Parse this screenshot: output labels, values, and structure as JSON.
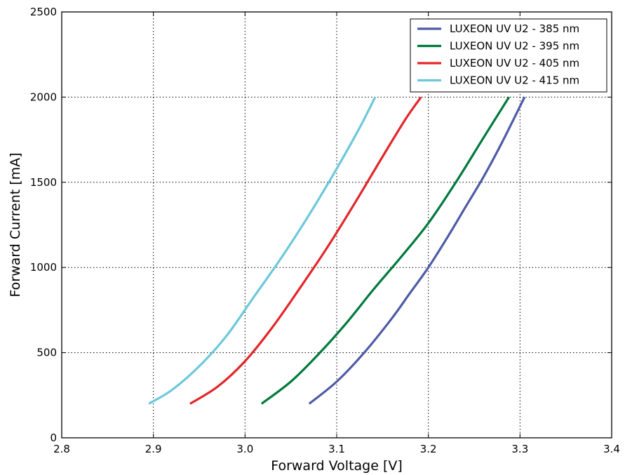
{
  "chart_data": {
    "type": "line",
    "title": "",
    "xlabel": "Forward Voltage [V]",
    "ylabel": "Forward Current [mA]",
    "xlim": [
      2.8,
      3.4
    ],
    "ylim": [
      0,
      2500
    ],
    "xticks": [
      "2.8",
      "2.9",
      "3.0",
      "3.1",
      "3.2",
      "3.3",
      "3.4"
    ],
    "yticks": [
      "0",
      "500",
      "1000",
      "1500",
      "2000",
      "2500"
    ],
    "grid": true,
    "legend_position": "top-right",
    "series": [
      {
        "name": "LUXEON UV U2 - 385 nm",
        "color": "#4e5ba6",
        "x": [
          3.07,
          3.1,
          3.13,
          3.16,
          3.18,
          3.2,
          3.22,
          3.24,
          3.26,
          3.28,
          3.305
        ],
        "y": [
          200,
          330,
          500,
          700,
          850,
          1000,
          1170,
          1350,
          1530,
          1730,
          2000
        ]
      },
      {
        "name": "LUXEON UV U2 - 395 nm",
        "color": "#007a3d",
        "x": [
          3.018,
          3.05,
          3.08,
          3.11,
          3.14,
          3.17,
          3.2,
          3.23,
          3.26,
          3.288
        ],
        "y": [
          200,
          330,
          490,
          670,
          870,
          1060,
          1260,
          1500,
          1760,
          2000
        ]
      },
      {
        "name": "LUXEON UV U2 - 405 nm",
        "color": "#e3262a",
        "x": [
          2.94,
          2.97,
          3.0,
          3.03,
          3.06,
          3.09,
          3.12,
          3.15,
          3.175,
          3.192
        ],
        "y": [
          200,
          300,
          450,
          650,
          880,
          1120,
          1380,
          1650,
          1870,
          2000
        ]
      },
      {
        "name": "LUXEON UV U2 - 415 nm",
        "color": "#6cc8da",
        "x": [
          2.895,
          2.92,
          2.95,
          2.98,
          3.01,
          3.04,
          3.07,
          3.1,
          3.125,
          3.142
        ],
        "y": [
          200,
          280,
          420,
          600,
          830,
          1060,
          1310,
          1580,
          1820,
          2000
        ]
      }
    ]
  }
}
